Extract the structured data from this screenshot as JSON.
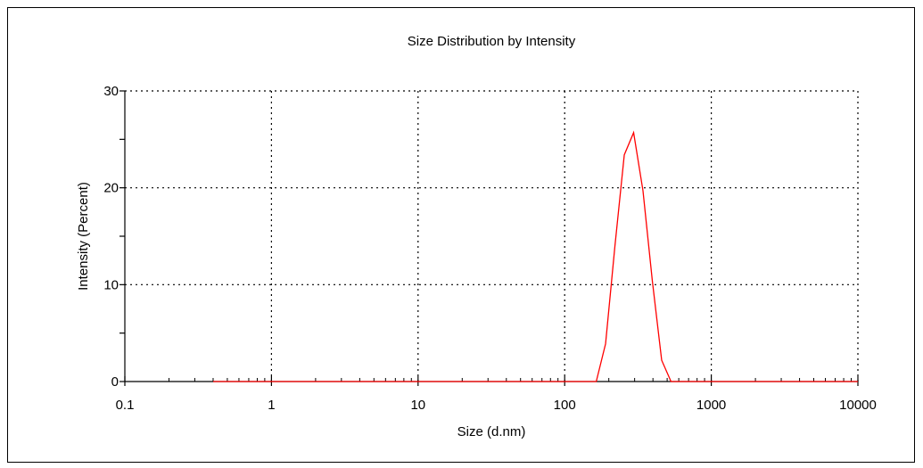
{
  "chart_data": {
    "type": "line",
    "title": "Size Distribution by Intensity",
    "xlabel": "Size (d.nm)",
    "ylabel": "Intensity (Percent)",
    "x_scale": "log",
    "xlim": [
      0.1,
      10000
    ],
    "ylim": [
      0,
      30
    ],
    "x_ticks": [
      0.1,
      1,
      10,
      100,
      1000,
      10000
    ],
    "x_tick_labels": [
      "0.1",
      "1",
      "10",
      "100",
      "1000",
      "10000"
    ],
    "y_ticks": [
      0,
      10,
      20,
      30
    ],
    "y_tick_labels": [
      "0",
      "10",
      "20",
      "30"
    ],
    "grid": "dotted",
    "legend": "none",
    "series": [
      {
        "color": "#ff0000",
        "x": [
          0.4,
          0.5,
          0.7,
          1,
          2,
          5,
          10,
          20,
          50,
          100,
          140,
          164.2,
          190.1,
          220.2,
          255.0,
          295.3,
          342.0,
          396.1,
          458.7,
          531.2,
          700,
          1000,
          2000,
          5000,
          10000
        ],
        "y": [
          0,
          0,
          0,
          0,
          0,
          0,
          0,
          0,
          0,
          0,
          0,
          0,
          3.9,
          14.0,
          23.4,
          25.7,
          19.7,
          10.4,
          2.2,
          0,
          0,
          0,
          0,
          0,
          0
        ]
      }
    ]
  }
}
